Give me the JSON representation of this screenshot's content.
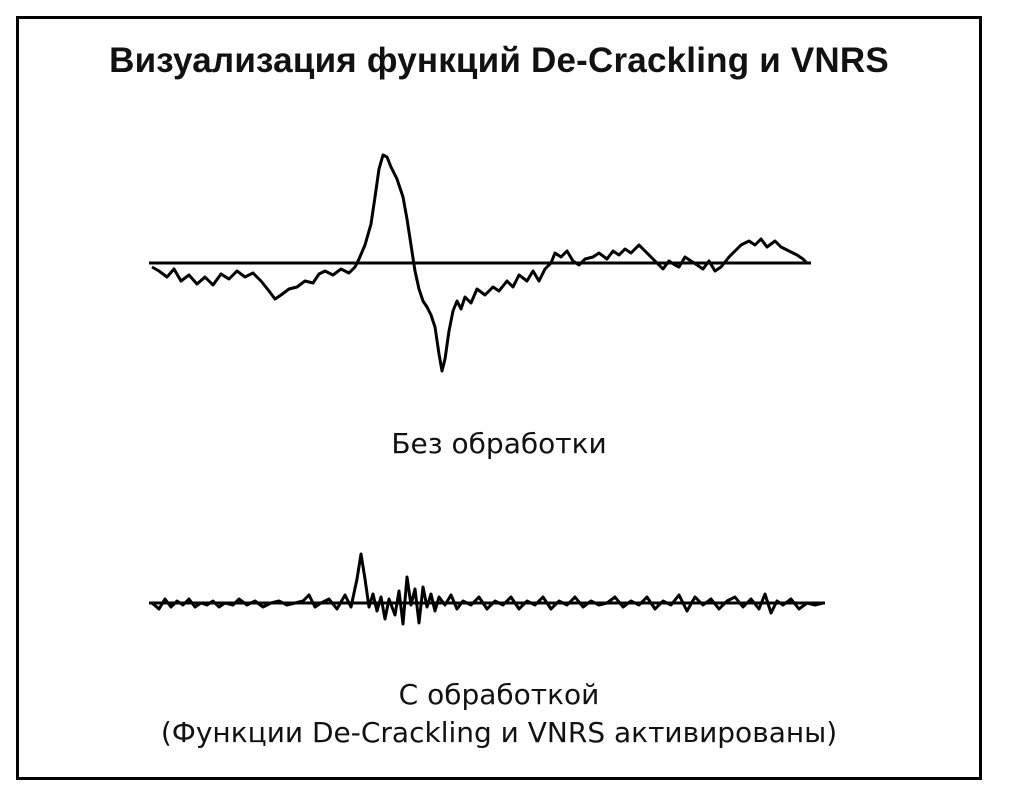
{
  "title": "Визуализация функций De-Crackling и VNRS",
  "panels": [
    {
      "caption_lines": [
        "Без обработки"
      ]
    },
    {
      "caption_lines": [
        "С обработкой",
        "(Функции De-Crackling и VNRS активированы)"
      ]
    }
  ],
  "colors": {
    "ink": "#000000",
    "background": "#ffffff"
  }
}
